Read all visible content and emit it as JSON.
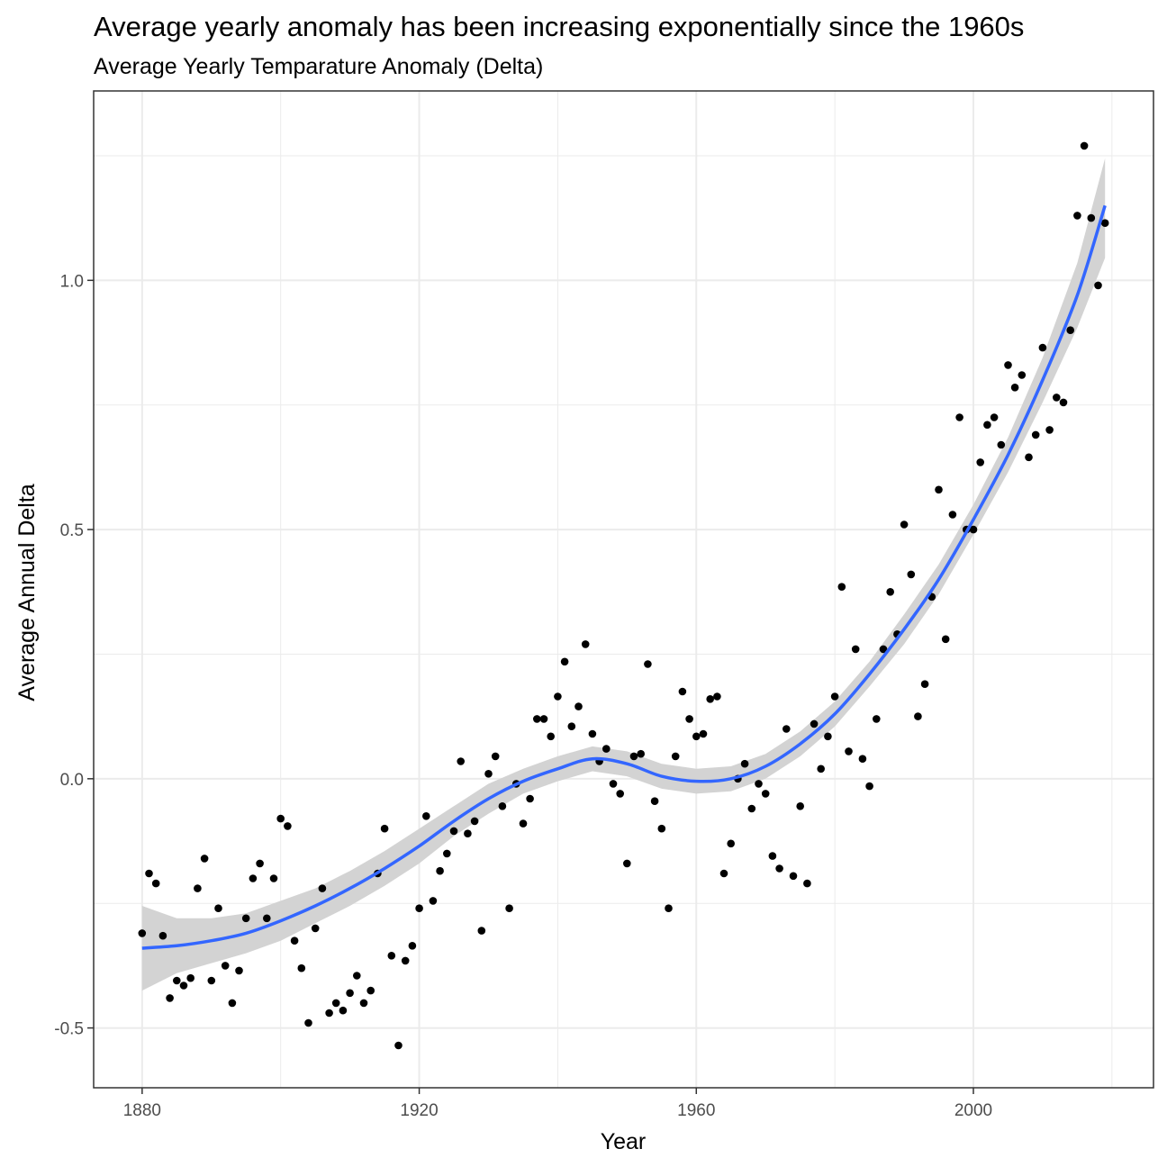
{
  "chart_data": {
    "type": "scatter",
    "title": "Average yearly anomaly has been increasing exponentially since the 1960s",
    "subtitle": "Average Yearly Temparature Anomaly (Delta)",
    "xlabel": "Year",
    "ylabel": "Average Annual Delta",
    "xlim": [
      1873,
      2026
    ],
    "ylim": [
      -0.62,
      1.38
    ],
    "x_ticks": [
      1880,
      1920,
      1960,
      2000
    ],
    "y_ticks": [
      -0.5,
      0.0,
      0.5,
      1.0
    ],
    "x_tick_labels": [
      "1880",
      "1920",
      "1960",
      "2000"
    ],
    "y_tick_labels": [
      "-0.5",
      "0.0",
      "0.5",
      "1.0"
    ],
    "grid": true,
    "colors": {
      "points": "#000000",
      "smooth_line": "#3366FF",
      "ribbon": "#D3D3D3",
      "grid": "#EBEBEB",
      "panel_border": "#333333"
    },
    "points": {
      "x": [
        1880,
        1881,
        1882,
        1883,
        1884,
        1885,
        1886,
        1887,
        1888,
        1889,
        1890,
        1891,
        1892,
        1893,
        1894,
        1895,
        1896,
        1897,
        1898,
        1899,
        1900,
        1901,
        1902,
        1903,
        1904,
        1905,
        1906,
        1907,
        1908,
        1909,
        1910,
        1911,
        1912,
        1913,
        1914,
        1915,
        1916,
        1917,
        1918,
        1919,
        1920,
        1921,
        1922,
        1923,
        1924,
        1925,
        1926,
        1927,
        1928,
        1929,
        1930,
        1931,
        1932,
        1933,
        1934,
        1935,
        1936,
        1937,
        1938,
        1939,
        1940,
        1941,
        1942,
        1943,
        1944,
        1945,
        1946,
        1947,
        1948,
        1949,
        1950,
        1951,
        1952,
        1953,
        1954,
        1955,
        1956,
        1957,
        1958,
        1959,
        1960,
        1961,
        1962,
        1963,
        1964,
        1965,
        1966,
        1967,
        1968,
        1969,
        1970,
        1971,
        1972,
        1973,
        1974,
        1975,
        1976,
        1977,
        1978,
        1979,
        1980,
        1981,
        1982,
        1983,
        1984,
        1985,
        1986,
        1987,
        1988,
        1989,
        1990,
        1991,
        1992,
        1993,
        1994,
        1995,
        1996,
        1997,
        1998,
        1999,
        2000,
        2001,
        2002,
        2003,
        2004,
        2005,
        2006,
        2007,
        2008,
        2009,
        2010,
        2011,
        2012,
        2013,
        2014,
        2015,
        2016,
        2017,
        2018,
        2019
      ],
      "y": [
        -0.31,
        -0.19,
        -0.21,
        -0.315,
        -0.44,
        -0.405,
        -0.415,
        -0.4,
        -0.22,
        -0.16,
        -0.405,
        -0.26,
        -0.375,
        -0.45,
        -0.385,
        -0.28,
        -0.2,
        -0.17,
        -0.28,
        -0.2,
        -0.08,
        -0.095,
        -0.325,
        -0.38,
        -0.49,
        -0.3,
        -0.22,
        -0.47,
        -0.45,
        -0.465,
        -0.43,
        -0.395,
        -0.45,
        -0.425,
        -0.19,
        -0.1,
        -0.355,
        -0.535,
        -0.365,
        -0.335,
        -0.26,
        -0.075,
        -0.245,
        -0.185,
        -0.15,
        -0.105,
        0.035,
        -0.11,
        -0.085,
        -0.305,
        0.01,
        0.045,
        -0.055,
        -0.26,
        -0.01,
        -0.09,
        -0.04,
        0.12,
        0.12,
        0.085,
        0.165,
        0.235,
        0.105,
        0.145,
        0.27,
        0.09,
        0.035,
        0.06,
        -0.01,
        -0.03,
        -0.17,
        0.045,
        0.05,
        0.23,
        -0.045,
        -0.1,
        -0.26,
        0.045,
        0.175,
        0.12,
        0.085,
        0.09,
        0.16,
        0.165,
        -0.19,
        -0.13,
        0.0,
        0.03,
        -0.06,
        -0.01,
        -0.03,
        -0.155,
        -0.18,
        0.1,
        -0.195,
        -0.055,
        -0.21,
        0.11,
        0.02,
        0.085,
        0.165,
        0.385,
        0.055,
        0.26,
        0.04,
        -0.015,
        0.12,
        0.26,
        0.375,
        0.29,
        0.51,
        0.41,
        0.125,
        0.19,
        0.365,
        0.58,
        0.28,
        0.53,
        0.725,
        0.5,
        0.5,
        0.635,
        0.71,
        0.725,
        0.67,
        0.83,
        0.785,
        0.81,
        0.645,
        0.69,
        0.865,
        0.7,
        0.765,
        0.755,
        0.9,
        1.13,
        1.27,
        1.125,
        0.99,
        1.115
      ]
    },
    "smooth": {
      "x": [
        1880,
        1885,
        1890,
        1895,
        1900,
        1905,
        1910,
        1915,
        1920,
        1925,
        1930,
        1935,
        1940,
        1945,
        1950,
        1955,
        1960,
        1965,
        1970,
        1975,
        1980,
        1985,
        1990,
        1995,
        2000,
        2005,
        2010,
        2015,
        2019
      ],
      "y": [
        -0.34,
        -0.335,
        -0.325,
        -0.31,
        -0.285,
        -0.255,
        -0.22,
        -0.18,
        -0.135,
        -0.085,
        -0.04,
        -0.005,
        0.02,
        0.04,
        0.03,
        0.005,
        -0.005,
        0.0,
        0.025,
        0.07,
        0.13,
        0.21,
        0.3,
        0.4,
        0.52,
        0.65,
        0.8,
        0.97,
        1.15
      ],
      "lower": [
        -0.425,
        -0.39,
        -0.37,
        -0.35,
        -0.325,
        -0.29,
        -0.255,
        -0.215,
        -0.17,
        -0.115,
        -0.07,
        -0.03,
        -0.005,
        0.015,
        0.005,
        -0.02,
        -0.03,
        -0.025,
        0.0,
        0.045,
        0.105,
        0.185,
        0.27,
        0.37,
        0.49,
        0.615,
        0.755,
        0.905,
        1.045
      ],
      "upper": [
        -0.255,
        -0.28,
        -0.28,
        -0.27,
        -0.245,
        -0.22,
        -0.185,
        -0.145,
        -0.1,
        -0.055,
        -0.01,
        0.02,
        0.045,
        0.065,
        0.055,
        0.03,
        0.02,
        0.025,
        0.05,
        0.095,
        0.155,
        0.235,
        0.33,
        0.43,
        0.55,
        0.685,
        0.845,
        1.035,
        1.245
      ]
    }
  }
}
